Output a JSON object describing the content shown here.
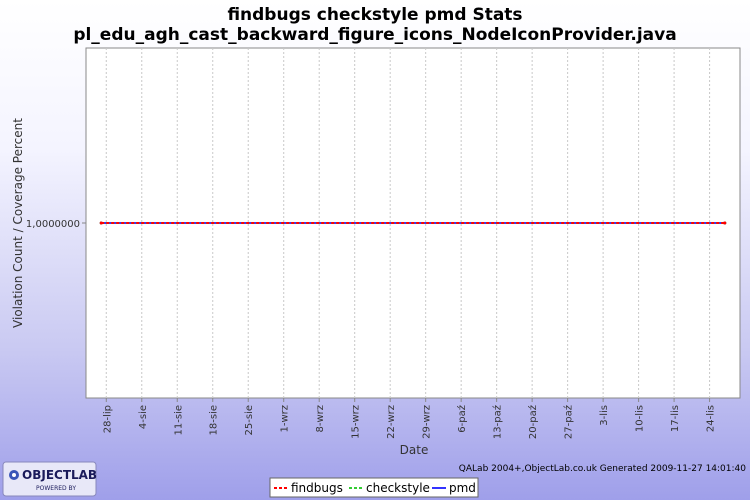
{
  "chart_data": {
    "type": "line",
    "title": "findbugs checkstyle pmd  Stats",
    "subtitle": "pl_edu_agh_cast_backward_figure_icons_NodeIconProvider.java",
    "xlabel": "Date",
    "ylabel": "Violation Count / Coverage Percent",
    "y_tick_labels": [
      "1,0000000"
    ],
    "y_ticks": [
      1.0
    ],
    "ylim": [
      0.0,
      2.0
    ],
    "x_tick_labels": [
      "28-lip",
      "4-sie",
      "11-sie",
      "18-sie",
      "25-sie",
      "1-wrz",
      "8-wrz",
      "15-wrz",
      "22-wrz",
      "29-wrz",
      "6-paź",
      "13-paź",
      "20-paź",
      "27-paź",
      "3-lis",
      "10-lis",
      "17-lis",
      "24-lis"
    ],
    "x_tick_dates": [
      "2009-07-28",
      "2009-08-04",
      "2009-08-11",
      "2009-08-18",
      "2009-08-25",
      "2009-09-01",
      "2009-09-08",
      "2009-09-15",
      "2009-09-22",
      "2009-09-29",
      "2009-10-06",
      "2009-10-13",
      "2009-10-20",
      "2009-10-27",
      "2009-11-03",
      "2009-11-10",
      "2009-11-17",
      "2009-11-24"
    ],
    "xlim": [
      "2009-07-24",
      "2009-11-30"
    ],
    "x": [
      "2009-07-27",
      "2009-11-27"
    ],
    "series": [
      {
        "name": "findbugs",
        "values": [
          1.0,
          1.0
        ],
        "color": "#ff0000",
        "dash": "dashed"
      },
      {
        "name": "checkstyle",
        "values": [
          1.0,
          1.0
        ],
        "color": "#33cc33",
        "dash": "dashed"
      },
      {
        "name": "pmd",
        "values": [
          1.0,
          1.0
        ],
        "color": "#3333ff",
        "dash": "solid"
      }
    ],
    "grid": true,
    "legend_position": "bottom-center"
  },
  "footer": {
    "generated": "QALab 2004+,ObjectLab.co.uk Generated 2009-11-27 14:01:40"
  },
  "logo": {
    "name": "OBJECTLAB",
    "tagline": "POWERED BY"
  },
  "colors": {
    "plot_background": "#ffffff",
    "grid": "#c8c8c8",
    "background_bottom": "#9f9fea"
  }
}
